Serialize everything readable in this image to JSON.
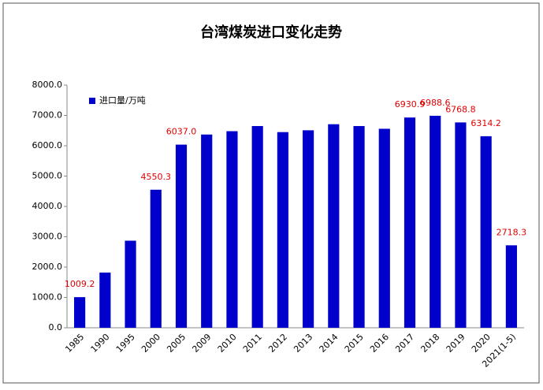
{
  "chart_data": {
    "type": "bar",
    "title": "台湾煤炭进口变化走势",
    "categories": [
      "1985",
      "1990",
      "1995",
      "2000",
      "2005",
      "2009",
      "2010",
      "2011",
      "2012",
      "2013",
      "2014",
      "2015",
      "2016",
      "2017",
      "2018",
      "2019",
      "2020",
      "2021(1-5)"
    ],
    "series": [
      {
        "name": "进口量/万吨",
        "color": "#0000cc",
        "values": [
          1009.2,
          1820,
          2870,
          4550.3,
          6037.0,
          6370,
          6480,
          6650,
          6450,
          6510,
          6710,
          6650,
          6560,
          6930.9,
          6988.6,
          6768.8,
          6314.2,
          2718.3
        ],
        "value_labels": [
          "1009.2",
          null,
          null,
          "4550.3",
          "6037.0",
          null,
          null,
          null,
          null,
          null,
          null,
          null,
          null,
          "6930.9",
          "6988.6",
          "6768.8",
          "6314.2",
          "2718.3"
        ]
      }
    ],
    "ylim": [
      0,
      8000
    ],
    "yticks": [
      {
        "value": 0,
        "label": "0.0"
      },
      {
        "value": 1000,
        "label": "1000.0"
      },
      {
        "value": 2000,
        "label": "2000.0"
      },
      {
        "value": 3000,
        "label": "3000.0"
      },
      {
        "value": 4000,
        "label": "4000.0"
      },
      {
        "value": 5000,
        "label": "5000.0"
      },
      {
        "value": 6000,
        "label": "6000.0"
      },
      {
        "value": 7000,
        "label": "7000.0"
      },
      {
        "value": 8000,
        "label": "8000.0"
      }
    ],
    "legend": "top-left",
    "label_color": "#e00000"
  }
}
